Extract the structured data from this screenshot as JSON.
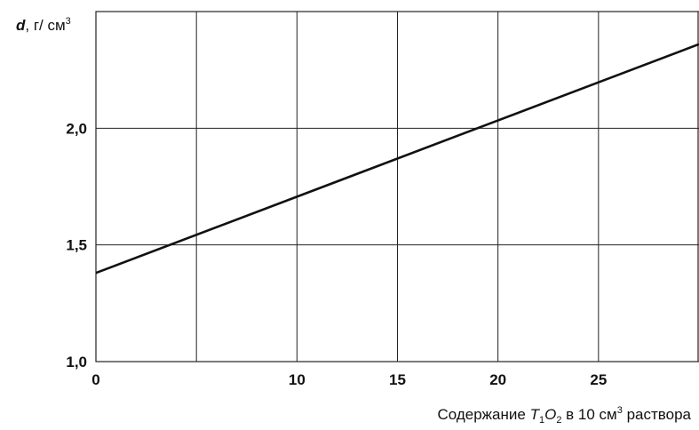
{
  "chart_data": {
    "type": "line",
    "title": "",
    "ylabel": {
      "symbol": "d",
      "rest": ", г/ см",
      "sup": "3"
    },
    "xlabel": {
      "part1": "Содержание ",
      "T": "T",
      "sub1": "1",
      "O": "O",
      "sub2": "2",
      "part2": " в 10 см",
      "sup": "3",
      "part3": " раствора"
    },
    "xlim": [
      0,
      30
    ],
    "ylim": [
      1.0,
      2.5
    ],
    "x_ticks": [
      0,
      10,
      15,
      20,
      25
    ],
    "x_tick_labels": [
      "0",
      "10",
      "15",
      "20",
      "25"
    ],
    "y_ticks": [
      1.0,
      1.5,
      2.0
    ],
    "y_tick_labels": [
      "1,0",
      "1,5",
      "2,0"
    ],
    "x_grid": [
      0,
      5,
      10,
      15,
      20,
      25
    ],
    "y_grid": [
      1.0,
      1.5,
      2.0,
      2.5
    ],
    "grid": true,
    "series": [
      {
        "x": [
          0,
          30
        ],
        "y": [
          1.38,
          2.36
        ],
        "color": "#111111"
      }
    ]
  }
}
